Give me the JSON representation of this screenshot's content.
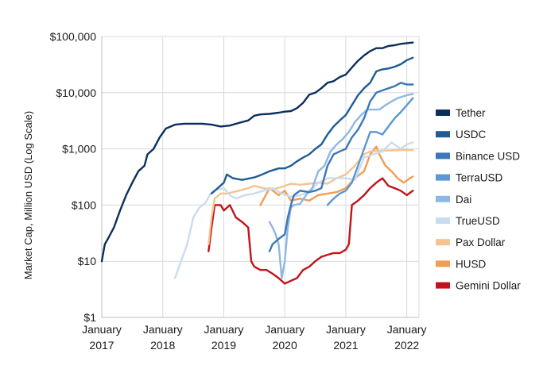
{
  "chart_data": {
    "type": "line",
    "title": "",
    "xlabel": "",
    "ylabel": "Market Cap, Million USD (Log Scale)",
    "y_scale": "log",
    "ylim": [
      1,
      100000
    ],
    "xlim": [
      2017.0,
      2022.2
    ],
    "grid": true,
    "legend_position": "right",
    "y_ticks": [
      {
        "value": 1,
        "label": "$1"
      },
      {
        "value": 10,
        "label": "$10"
      },
      {
        "value": 100,
        "label": "$100"
      },
      {
        "value": 1000,
        "label": "$1,000"
      },
      {
        "value": 10000,
        "label": "$10,000"
      },
      {
        "value": 100000,
        "label": "$100,000"
      }
    ],
    "x_ticks": [
      {
        "value": 2017,
        "label1": "January",
        "label2": "2017"
      },
      {
        "value": 2018,
        "label1": "January",
        "label2": "2018"
      },
      {
        "value": 2019,
        "label1": "January",
        "label2": "2019"
      },
      {
        "value": 2020,
        "label1": "January",
        "label2": "2020"
      },
      {
        "value": 2021,
        "label1": "January",
        "label2": "2021"
      },
      {
        "value": 2022,
        "label1": "January",
        "label2": "2022"
      }
    ],
    "series": [
      {
        "name": "Tether",
        "color": "#0b2f5c",
        "points": [
          [
            2017.0,
            10
          ],
          [
            2017.05,
            20
          ],
          [
            2017.1,
            25
          ],
          [
            2017.2,
            40
          ],
          [
            2017.3,
            80
          ],
          [
            2017.4,
            150
          ],
          [
            2017.5,
            250
          ],
          [
            2017.6,
            400
          ],
          [
            2017.7,
            500
          ],
          [
            2017.75,
            800
          ],
          [
            2017.85,
            1000
          ],
          [
            2017.95,
            1600
          ],
          [
            2018.05,
            2300
          ],
          [
            2018.2,
            2700
          ],
          [
            2018.35,
            2800
          ],
          [
            2018.5,
            2800
          ],
          [
            2018.65,
            2800
          ],
          [
            2018.8,
            2700
          ],
          [
            2018.95,
            2500
          ],
          [
            2019.1,
            2600
          ],
          [
            2019.25,
            2900
          ],
          [
            2019.4,
            3200
          ],
          [
            2019.5,
            3900
          ],
          [
            2019.6,
            4100
          ],
          [
            2019.75,
            4200
          ],
          [
            2019.9,
            4400
          ],
          [
            2020.0,
            4600
          ],
          [
            2020.1,
            4700
          ],
          [
            2020.2,
            5300
          ],
          [
            2020.3,
            6600
          ],
          [
            2020.4,
            9200
          ],
          [
            2020.5,
            10000
          ],
          [
            2020.6,
            12000
          ],
          [
            2020.7,
            15000
          ],
          [
            2020.8,
            16000
          ],
          [
            2020.9,
            19000
          ],
          [
            2021.0,
            21000
          ],
          [
            2021.1,
            28000
          ],
          [
            2021.2,
            37000
          ],
          [
            2021.3,
            46000
          ],
          [
            2021.4,
            55000
          ],
          [
            2021.5,
            62000
          ],
          [
            2021.6,
            62000
          ],
          [
            2021.7,
            68000
          ],
          [
            2021.8,
            70000
          ],
          [
            2021.9,
            74000
          ],
          [
            2022.0,
            76000
          ],
          [
            2022.1,
            78000
          ]
        ]
      },
      {
        "name": "USDC",
        "color": "#1f5b94",
        "points": [
          [
            2018.8,
            160
          ],
          [
            2018.9,
            200
          ],
          [
            2019.0,
            250
          ],
          [
            2019.05,
            350
          ],
          [
            2019.15,
            300
          ],
          [
            2019.3,
            280
          ],
          [
            2019.5,
            310
          ],
          [
            2019.6,
            340
          ],
          [
            2019.75,
            400
          ],
          [
            2019.9,
            450
          ],
          [
            2020.0,
            450
          ],
          [
            2020.1,
            500
          ],
          [
            2020.2,
            600
          ],
          [
            2020.3,
            700
          ],
          [
            2020.4,
            800
          ],
          [
            2020.5,
            1000
          ],
          [
            2020.6,
            1200
          ],
          [
            2020.7,
            1800
          ],
          [
            2020.8,
            2500
          ],
          [
            2020.9,
            3200
          ],
          [
            2021.0,
            4000
          ],
          [
            2021.1,
            6000
          ],
          [
            2021.2,
            9000
          ],
          [
            2021.3,
            12000
          ],
          [
            2021.4,
            15000
          ],
          [
            2021.5,
            24000
          ],
          [
            2021.6,
            26000
          ],
          [
            2021.7,
            27000
          ],
          [
            2021.8,
            29000
          ],
          [
            2021.9,
            32000
          ],
          [
            2022.0,
            38000
          ],
          [
            2022.1,
            42000
          ]
        ]
      },
      {
        "name": "Binance USD",
        "color": "#3a78b8",
        "points": [
          [
            2019.75,
            15
          ],
          [
            2019.8,
            20
          ],
          [
            2019.9,
            25
          ],
          [
            2020.0,
            30
          ],
          [
            2020.05,
            60
          ],
          [
            2020.1,
            100
          ],
          [
            2020.15,
            150
          ],
          [
            2020.25,
            180
          ],
          [
            2020.4,
            170
          ],
          [
            2020.5,
            180
          ],
          [
            2020.6,
            200
          ],
          [
            2020.7,
            500
          ],
          [
            2020.8,
            800
          ],
          [
            2020.9,
            900
          ],
          [
            2021.0,
            1000
          ],
          [
            2021.1,
            1600
          ],
          [
            2021.2,
            2200
          ],
          [
            2021.3,
            3500
          ],
          [
            2021.4,
            7000
          ],
          [
            2021.5,
            10000
          ],
          [
            2021.6,
            11000
          ],
          [
            2021.7,
            12000
          ],
          [
            2021.8,
            13000
          ],
          [
            2021.9,
            15000
          ],
          [
            2022.0,
            14000
          ],
          [
            2022.1,
            14000
          ]
        ]
      },
      {
        "name": "TerraUSD",
        "color": "#5b97d1",
        "points": [
          [
            2020.7,
            100
          ],
          [
            2020.8,
            130
          ],
          [
            2020.9,
            160
          ],
          [
            2021.0,
            180
          ],
          [
            2021.1,
            250
          ],
          [
            2021.2,
            500
          ],
          [
            2021.3,
            1000
          ],
          [
            2021.4,
            2000
          ],
          [
            2021.5,
            2000
          ],
          [
            2021.6,
            1800
          ],
          [
            2021.7,
            2500
          ],
          [
            2021.8,
            3500
          ],
          [
            2021.9,
            4500
          ],
          [
            2022.0,
            6000
          ],
          [
            2022.1,
            8000
          ]
        ]
      },
      {
        "name": "Dai",
        "color": "#8db8e4",
        "points": [
          [
            2019.75,
            50
          ],
          [
            2019.8,
            40
          ],
          [
            2019.85,
            30
          ],
          [
            2019.9,
            20
          ],
          [
            2019.95,
            5
          ],
          [
            2020.0,
            10
          ],
          [
            2020.05,
            40
          ],
          [
            2020.1,
            90
          ],
          [
            2020.15,
            100
          ],
          [
            2020.25,
            105
          ],
          [
            2020.35,
            150
          ],
          [
            2020.45,
            200
          ],
          [
            2020.55,
            400
          ],
          [
            2020.65,
            500
          ],
          [
            2020.75,
            900
          ],
          [
            2020.85,
            1200
          ],
          [
            2020.95,
            1500
          ],
          [
            2021.05,
            2000
          ],
          [
            2021.15,
            3000
          ],
          [
            2021.25,
            4000
          ],
          [
            2021.35,
            5000
          ],
          [
            2021.45,
            5000
          ],
          [
            2021.55,
            5000
          ],
          [
            2021.65,
            6000
          ],
          [
            2021.75,
            7000
          ],
          [
            2021.85,
            8000
          ],
          [
            2022.0,
            9000
          ],
          [
            2022.1,
            9500
          ]
        ]
      },
      {
        "name": "TrueUSD",
        "color": "#c9dcf0",
        "points": [
          [
            2018.2,
            5
          ],
          [
            2018.3,
            10
          ],
          [
            2018.4,
            20
          ],
          [
            2018.5,
            60
          ],
          [
            2018.6,
            90
          ],
          [
            2018.7,
            110
          ],
          [
            2018.8,
            170
          ],
          [
            2018.9,
            190
          ],
          [
            2019.0,
            200
          ],
          [
            2019.1,
            150
          ],
          [
            2019.2,
            130
          ],
          [
            2019.35,
            150
          ],
          [
            2019.5,
            160
          ],
          [
            2019.65,
            180
          ],
          [
            2019.8,
            200
          ],
          [
            2019.95,
            160
          ],
          [
            2020.1,
            140
          ],
          [
            2020.25,
            150
          ],
          [
            2020.4,
            170
          ],
          [
            2020.55,
            250
          ],
          [
            2020.7,
            300
          ],
          [
            2020.85,
            300
          ],
          [
            2021.0,
            300
          ],
          [
            2021.15,
            280
          ],
          [
            2021.3,
            700
          ],
          [
            2021.45,
            800
          ],
          [
            2021.6,
            900
          ],
          [
            2021.75,
            1300
          ],
          [
            2021.9,
            1000
          ],
          [
            2022.0,
            1200
          ],
          [
            2022.1,
            1300
          ]
        ]
      },
      {
        "name": "Pax Dollar",
        "color": "#f6c391",
        "points": [
          [
            2018.75,
            20
          ],
          [
            2018.8,
            60
          ],
          [
            2018.85,
            130
          ],
          [
            2018.95,
            160
          ],
          [
            2019.05,
            160
          ],
          [
            2019.15,
            170
          ],
          [
            2019.25,
            180
          ],
          [
            2019.4,
            200
          ],
          [
            2019.5,
            220
          ],
          [
            2019.65,
            200
          ],
          [
            2019.8,
            190
          ],
          [
            2019.95,
            210
          ],
          [
            2020.1,
            240
          ],
          [
            2020.25,
            230
          ],
          [
            2020.4,
            240
          ],
          [
            2020.55,
            250
          ],
          [
            2020.7,
            240
          ],
          [
            2020.85,
            300
          ],
          [
            2021.0,
            350
          ],
          [
            2021.15,
            500
          ],
          [
            2021.3,
            800
          ],
          [
            2021.4,
            900
          ],
          [
            2021.5,
            920
          ],
          [
            2021.6,
            930
          ],
          [
            2021.75,
            940
          ],
          [
            2021.9,
            950
          ],
          [
            2022.0,
            950
          ],
          [
            2022.1,
            950
          ]
        ]
      },
      {
        "name": "HUSD",
        "color": "#ef9e54",
        "points": [
          [
            2019.6,
            100
          ],
          [
            2019.75,
            200
          ],
          [
            2019.9,
            150
          ],
          [
            2020.0,
            180
          ],
          [
            2020.1,
            120
          ],
          [
            2020.25,
            130
          ],
          [
            2020.4,
            120
          ],
          [
            2020.55,
            150
          ],
          [
            2020.7,
            160
          ],
          [
            2020.85,
            170
          ],
          [
            2021.0,
            200
          ],
          [
            2021.15,
            300
          ],
          [
            2021.3,
            400
          ],
          [
            2021.4,
            800
          ],
          [
            2021.5,
            1100
          ],
          [
            2021.55,
            800
          ],
          [
            2021.65,
            500
          ],
          [
            2021.75,
            400
          ],
          [
            2021.85,
            300
          ],
          [
            2021.95,
            250
          ],
          [
            2022.05,
            300
          ],
          [
            2022.1,
            320
          ]
        ]
      },
      {
        "name": "Gemini Dollar",
        "color": "#c0141a",
        "points": [
          [
            2018.75,
            15
          ],
          [
            2018.8,
            40
          ],
          [
            2018.85,
            100
          ],
          [
            2018.95,
            100
          ],
          [
            2019.0,
            80
          ],
          [
            2019.1,
            100
          ],
          [
            2019.2,
            60
          ],
          [
            2019.3,
            50
          ],
          [
            2019.4,
            40
          ],
          [
            2019.45,
            10
          ],
          [
            2019.5,
            8
          ],
          [
            2019.6,
            7
          ],
          [
            2019.7,
            7
          ],
          [
            2019.8,
            6
          ],
          [
            2019.9,
            5
          ],
          [
            2020.0,
            4
          ],
          [
            2020.1,
            4.5
          ],
          [
            2020.2,
            5
          ],
          [
            2020.3,
            7
          ],
          [
            2020.4,
            8
          ],
          [
            2020.5,
            10
          ],
          [
            2020.6,
            12
          ],
          [
            2020.7,
            13
          ],
          [
            2020.8,
            14
          ],
          [
            2020.9,
            14
          ],
          [
            2021.0,
            16
          ],
          [
            2021.05,
            20
          ],
          [
            2021.1,
            100
          ],
          [
            2021.2,
            120
          ],
          [
            2021.3,
            150
          ],
          [
            2021.4,
            200
          ],
          [
            2021.5,
            250
          ],
          [
            2021.6,
            300
          ],
          [
            2021.7,
            220
          ],
          [
            2021.8,
            200
          ],
          [
            2021.9,
            180
          ],
          [
            2022.0,
            150
          ],
          [
            2022.1,
            180
          ]
        ]
      }
    ]
  }
}
